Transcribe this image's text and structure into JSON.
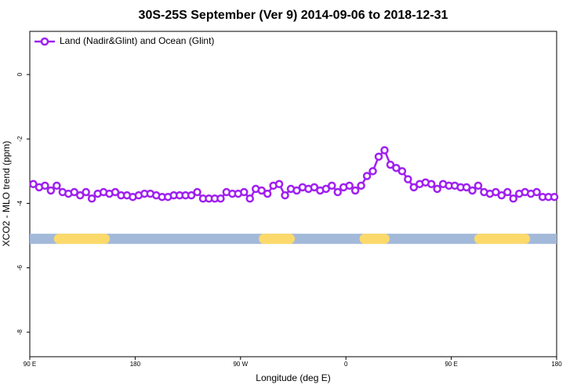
{
  "chart_data": {
    "type": "line",
    "title": "30S-25S September (Ver 9)   2014-09-06 to 2018-12-31",
    "x_label": "Longitude (deg E)",
    "y_label": "XCO2 - MLO trend (ppm)",
    "xlim": [
      90,
      540
    ],
    "xticks": [
      {
        "value": 90,
        "label": "90 E"
      },
      180,
      {
        "value": 270,
        "label": "90 W"
      },
      {
        "value": 360,
        "label": "0"
      },
      {
        "value": 450,
        "label": "90 E"
      },
      {
        "value": 540,
        "label": "180"
      }
    ],
    "ylim": [
      -8.76,
      1.34
    ],
    "yticks": [
      -8,
      -6,
      -4,
      -2,
      0
    ],
    "legend": "top-left",
    "x": [
      93,
      98,
      103,
      108,
      113,
      118,
      123,
      128,
      133,
      138,
      143,
      148,
      153,
      158,
      163,
      168,
      173,
      178,
      183,
      188,
      193,
      198,
      203,
      208,
      213,
      218,
      223,
      228,
      233,
      238,
      243,
      248,
      253,
      258,
      263,
      268,
      273,
      278,
      283,
      288,
      293,
      298,
      303,
      308,
      313,
      318,
      323,
      328,
      333,
      338,
      343,
      348,
      353,
      358,
      363,
      368,
      373,
      378,
      383,
      388,
      393,
      398,
      403,
      408,
      413,
      418,
      423,
      428,
      433,
      438,
      443,
      448,
      453,
      458,
      463,
      468,
      473,
      478,
      483,
      488,
      493,
      498,
      503,
      508,
      513,
      518,
      523,
      528,
      533,
      538
    ],
    "series": [
      {
        "name": "Land (Nadir&Glint) and Ocean (Glint)",
        "color": "#a020f0",
        "values": [
          -3.4,
          -3.5,
          -3.45,
          -3.6,
          -3.45,
          -3.65,
          -3.7,
          -3.65,
          -3.75,
          -3.65,
          -3.85,
          -3.7,
          -3.65,
          -3.7,
          -3.65,
          -3.75,
          -3.75,
          -3.8,
          -3.75,
          -3.7,
          -3.7,
          -3.75,
          -3.8,
          -3.8,
          -3.75,
          -3.75,
          -3.75,
          -3.75,
          -3.65,
          -3.85,
          -3.85,
          -3.85,
          -3.85,
          -3.65,
          -3.7,
          -3.7,
          -3.65,
          -3.85,
          -3.55,
          -3.6,
          -3.7,
          -3.45,
          -3.4,
          -3.75,
          -3.55,
          -3.6,
          -3.5,
          -3.55,
          -3.5,
          -3.6,
          -3.55,
          -3.45,
          -3.65,
          -3.5,
          -3.45,
          -3.6,
          -3.45,
          -3.15,
          -3.0,
          -2.55,
          -2.35,
          -2.8,
          -2.9,
          -3.0,
          -3.25,
          -3.5,
          -3.4,
          -3.35,
          -3.4,
          -3.55,
          -3.4,
          -3.45,
          -3.45,
          -3.5,
          -3.5,
          -3.6,
          -3.45,
          -3.65,
          -3.7,
          -3.65,
          -3.75,
          -3.65,
          -3.85,
          -3.7,
          -3.65,
          -3.7,
          -3.65,
          -3.8,
          -3.8,
          -3.8
        ]
      }
    ],
    "surface_band": {
      "y": -5.1,
      "ocean_color": "#a3b9d9",
      "land_color": "#fcd96b",
      "land": [
        [
          115,
          154
        ],
        [
          290,
          312
        ],
        [
          376,
          393
        ],
        [
          474,
          513
        ]
      ]
    }
  }
}
